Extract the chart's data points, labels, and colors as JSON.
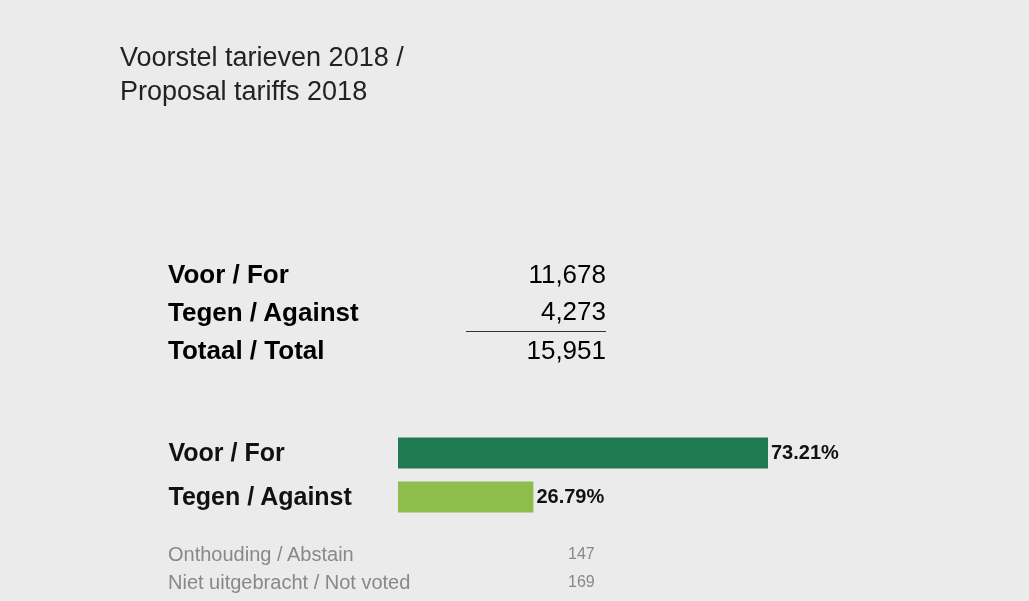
{
  "chart_data": {
    "type": "bar",
    "orientation": "horizontal",
    "title": "Voorstel tarieven 2018 / Proposal tariffs 2018",
    "categories": [
      "Voor / For",
      "Tegen / Against"
    ],
    "values": [
      73.21,
      26.79
    ],
    "colors": [
      "#1e7a50",
      "#8dbd4c"
    ],
    "value_labels": [
      "73.21%",
      "26.79%"
    ],
    "tick_labels": "y",
    "annotations": [
      "Voor / For",
      "11,678",
      "Tegen / Against",
      "4,273",
      "Totaal / Total",
      "15,951",
      "Onthouding / Abstain",
      "147",
      "Niet uitgebracht / Not voted",
      "169"
    ]
  }
}
